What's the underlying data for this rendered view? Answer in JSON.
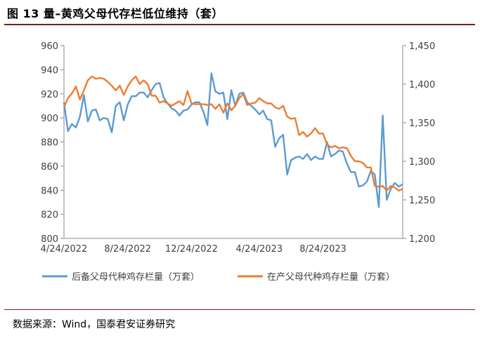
{
  "header": {
    "title": "图 13 量–黄鸡父母代存栏低位维持（套）"
  },
  "footer": {
    "source": "数据来源：Wind，国泰君安证券研究"
  },
  "chart_data": {
    "type": "line",
    "title": "",
    "x_ticks": [
      "4/24/2022",
      "8/24/2022",
      "12/24/2022",
      "4/24/2023",
      "8/24/2023"
    ],
    "y_left": {
      "min": 800,
      "max": 960,
      "ticks": [
        800,
        820,
        840,
        860,
        880,
        900,
        920,
        940,
        960
      ]
    },
    "y_right": {
      "min": 1200,
      "max": 1450,
      "ticks": [
        "1,200",
        "1,250",
        "1,300",
        "1,350",
        "1,400",
        "1,450"
      ]
    },
    "legend_position": "bottom",
    "series": [
      {
        "name": "后备父母代种鸡存栏量（万套）",
        "axis": "left",
        "color": "#5b9bd5",
        "values": [
          913,
          889,
          895,
          892,
          901,
          919,
          897,
          906,
          907,
          898,
          900,
          899,
          888,
          910,
          913,
          898,
          911,
          918,
          918,
          921,
          921,
          917,
          923,
          928,
          929,
          917,
          912,
          908,
          906,
          902,
          906,
          907,
          911,
          913,
          913,
          905,
          894,
          937,
          922,
          920,
          921,
          899,
          923,
          910,
          920,
          921,
          913,
          910,
          907,
          903,
          906,
          899,
          898,
          876,
          883,
          886,
          853,
          865,
          867,
          868,
          866,
          870,
          865,
          868,
          866,
          866,
          880,
          868,
          870,
          873,
          872,
          862,
          855,
          855,
          843,
          844,
          847,
          856,
          853,
          826,
          902,
          832,
          841,
          846,
          843,
          845
        ]
      },
      {
        "name": "在产父母代种鸡存栏量（万套）",
        "axis": "right",
        "color": "#ed7d31",
        "values": [
          1370,
          1382,
          1388,
          1397,
          1380,
          1392,
          1405,
          1410,
          1407,
          1408,
          1407,
          1403,
          1398,
          1392,
          1398,
          1386,
          1397,
          1405,
          1410,
          1400,
          1405,
          1400,
          1385,
          1385,
          1376,
          1378,
          1375,
          1372,
          1375,
          1378,
          1373,
          1391,
          1375,
          1374,
          1374,
          1374,
          1373,
          1374,
          1368,
          1374,
          1363,
          1375,
          1366,
          1372,
          1382,
          1387,
          1373,
          1375,
          1376,
          1382,
          1378,
          1375,
          1375,
          1370,
          1368,
          1372,
          1358,
          1355,
          1356,
          1334,
          1338,
          1332,
          1336,
          1343,
          1336,
          1336,
          1322,
          1318,
          1320,
          1317,
          1318,
          1317,
          1307,
          1300,
          1300,
          1298,
          1292,
          1292,
          1268,
          1267,
          1268,
          1262,
          1268,
          1266,
          1262,
          1264
        ]
      }
    ]
  }
}
